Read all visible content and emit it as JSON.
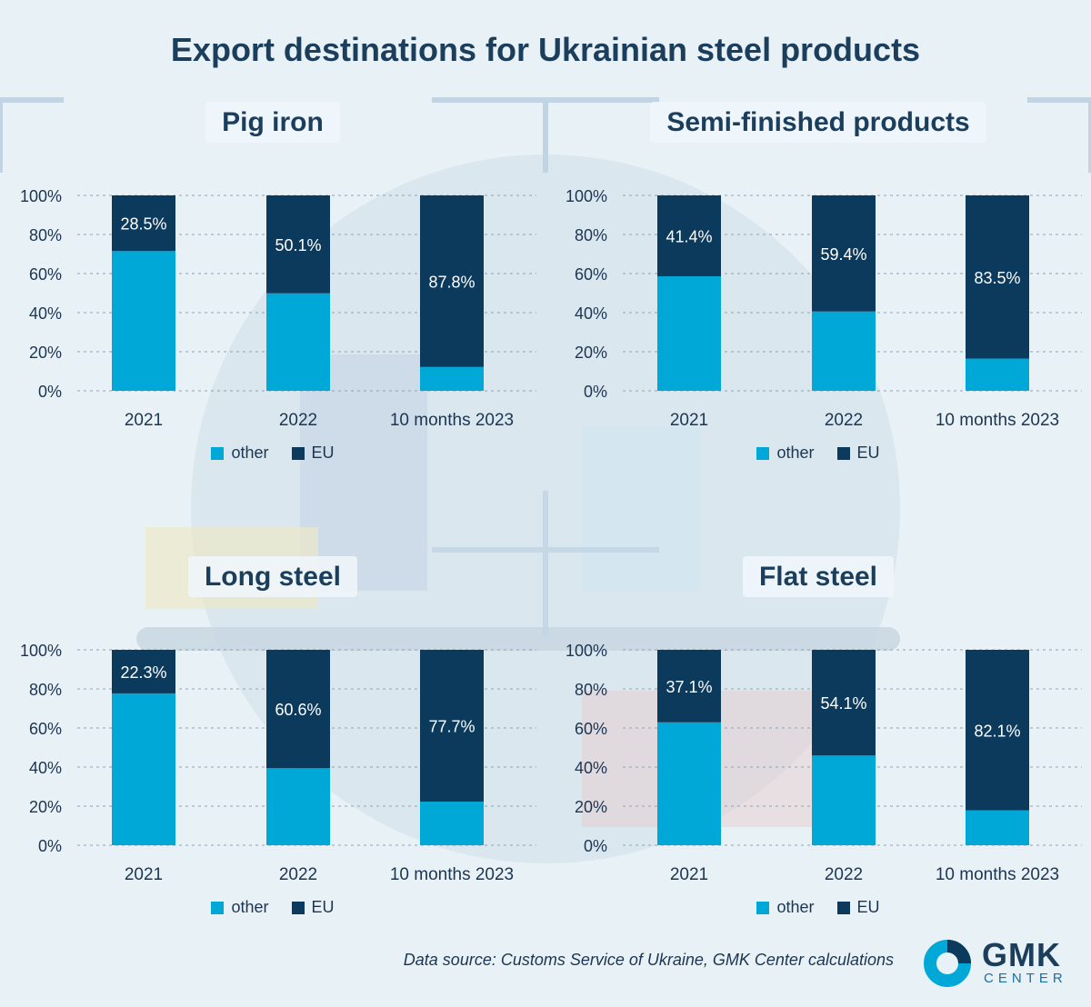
{
  "title": "Export destinations for Ukrainian steel products",
  "source": "Data source: Customs Service of Ukraine, GMK Center calculations",
  "logo": {
    "main": "GMK",
    "sub": "CENTER"
  },
  "colors": {
    "other": "#00a8d8",
    "eu": "#0b3a5c",
    "grid": "#8ea3b3",
    "text": "#1c3552"
  },
  "legend": {
    "other": "other",
    "eu": "EU"
  },
  "chart_data": [
    {
      "type": "bar",
      "title": "Pig iron",
      "categories": [
        "2021",
        "2022",
        "10 months 2023"
      ],
      "series": [
        {
          "name": "other",
          "values": [
            71.5,
            49.9,
            12.2
          ]
        },
        {
          "name": "EU",
          "values": [
            28.5,
            50.1,
            87.8
          ]
        }
      ],
      "labels": [
        "28.5%",
        "50.1%",
        "87.8%"
      ],
      "yticks": [
        "100%",
        "80%",
        "60%",
        "40%",
        "20%",
        "0%"
      ],
      "ylim": [
        0,
        100
      ],
      "stacked": true
    },
    {
      "type": "bar",
      "title": "Semi-finished products",
      "categories": [
        "2021",
        "2022",
        "10 months 2023"
      ],
      "series": [
        {
          "name": "other",
          "values": [
            58.6,
            40.6,
            16.5
          ]
        },
        {
          "name": "EU",
          "values": [
            41.4,
            59.4,
            83.5
          ]
        }
      ],
      "labels": [
        "41.4%",
        "59.4%",
        "83.5%"
      ],
      "yticks": [
        "100%",
        "80%",
        "60%",
        "40%",
        "20%",
        "0%"
      ],
      "ylim": [
        0,
        100
      ],
      "stacked": true
    },
    {
      "type": "bar",
      "title": "Long steel",
      "categories": [
        "2021",
        "2022",
        "10 months 2023"
      ],
      "series": [
        {
          "name": "other",
          "values": [
            77.7,
            39.4,
            22.3
          ]
        },
        {
          "name": "EU",
          "values": [
            22.3,
            60.6,
            77.7
          ]
        }
      ],
      "labels": [
        "22.3%",
        "60.6%",
        "77.7%"
      ],
      "yticks": [
        "100%",
        "80%",
        "60%",
        "40%",
        "20%",
        "0%"
      ],
      "ylim": [
        0,
        100
      ],
      "stacked": true
    },
    {
      "type": "bar",
      "title": "Flat steel",
      "categories": [
        "2021",
        "2022",
        "10 months 2023"
      ],
      "series": [
        {
          "name": "other",
          "values": [
            62.9,
            45.9,
            17.9
          ]
        },
        {
          "name": "EU",
          "values": [
            37.1,
            54.1,
            82.1
          ]
        }
      ],
      "labels": [
        "37.1%",
        "54.1%",
        "82.1%"
      ],
      "yticks": [
        "100%",
        "80%",
        "60%",
        "40%",
        "20%",
        "0%"
      ],
      "ylim": [
        0,
        100
      ],
      "stacked": true
    }
  ]
}
